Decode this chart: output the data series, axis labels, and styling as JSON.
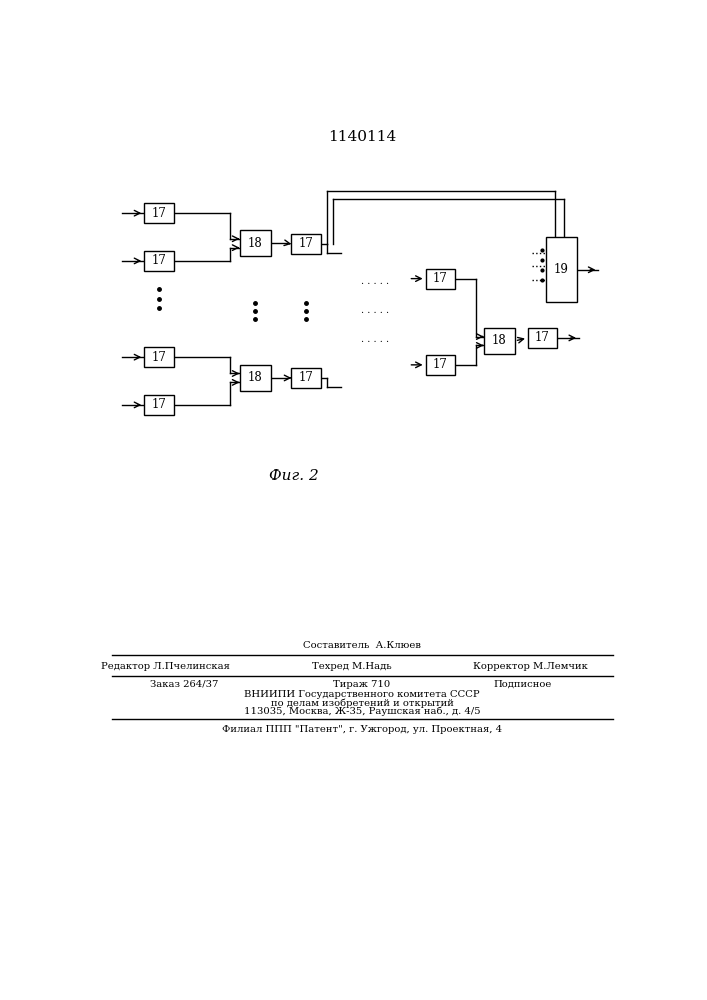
{
  "title": "1140114",
  "fig_label": "Фиг. 2",
  "background_color": "#ffffff",
  "line_color": "#000000",
  "footer": {
    "sestavitel_label": "Составитель  А.Клюев",
    "redaktor_label": "Редактор Л.Пчелинская",
    "tehred_label": "Техред М.Надь",
    "korrektor_label": "Корректор М.Лемчик",
    "zakaz_label": "Заказ 264/37",
    "tirazh_label": "Тираж 710",
    "podpisnoe_label": "Подписное",
    "vniip_line1": "ВНИИПИ Государственного комитета СССР",
    "vniip_line2": "по делам изобретений и открытий",
    "vniip_line3": "113035, Москва, Ж-35, Раушская наб., д. 4/5",
    "filial_line": "Филиал ППП \"Патент\", г. Ужгород, ул. Проектная, 4"
  }
}
